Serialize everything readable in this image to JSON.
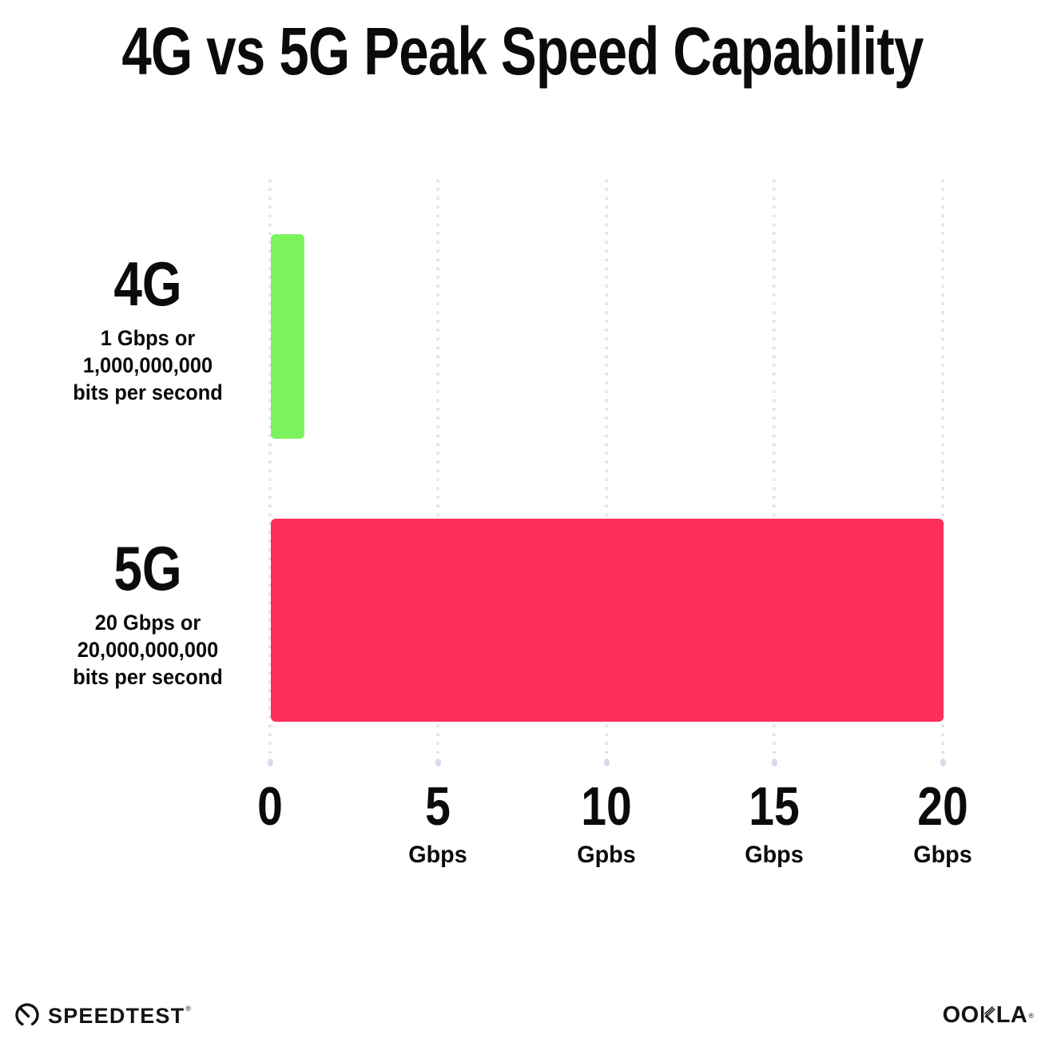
{
  "title": "4G vs 5G Peak Speed Capability",
  "chart_data": {
    "type": "bar",
    "orientation": "horizontal",
    "title": "4G vs 5G Peak Speed Capability",
    "categories": [
      "4G",
      "5G"
    ],
    "values": [
      1,
      20
    ],
    "value_unit": "Gbps",
    "xlabel": "",
    "ylabel": "",
    "xlim": [
      0,
      20
    ],
    "grid": "dotted vertical gridlines every 5 Gbps",
    "legend": "none",
    "bars": [
      {
        "label": "4G",
        "value_gbps": 1,
        "color": "#7CF25F",
        "desc_lines": [
          "1 Gbps or",
          "1,000,000,000",
          "bits per second"
        ]
      },
      {
        "label": "5G",
        "value_gbps": 20,
        "color": "#FD2D5C",
        "desc_lines": [
          "20 Gbps or",
          "20,000,000,000",
          "bits per second"
        ]
      }
    ],
    "x_ticks": [
      {
        "label": "0",
        "unit": ""
      },
      {
        "label": "5",
        "unit": "Gbps"
      },
      {
        "label": "10",
        "unit": "Gpbs"
      },
      {
        "label": "15",
        "unit": "Gbps"
      },
      {
        "label": "20",
        "unit": "Gbps"
      }
    ]
  },
  "footer": {
    "speedtest_label": "SPEEDTEST",
    "speedtest_trademark": "®",
    "ookla_prefix": "OO",
    "ookla_suffix": "LA",
    "ookla_trademark": "®"
  },
  "colors": {
    "background": "#FFFFFF",
    "text": "#0B0B0B",
    "grid_dot": "#E0E3EF",
    "bar_4g": "#7CF25F",
    "bar_5g": "#FD2D5C"
  }
}
